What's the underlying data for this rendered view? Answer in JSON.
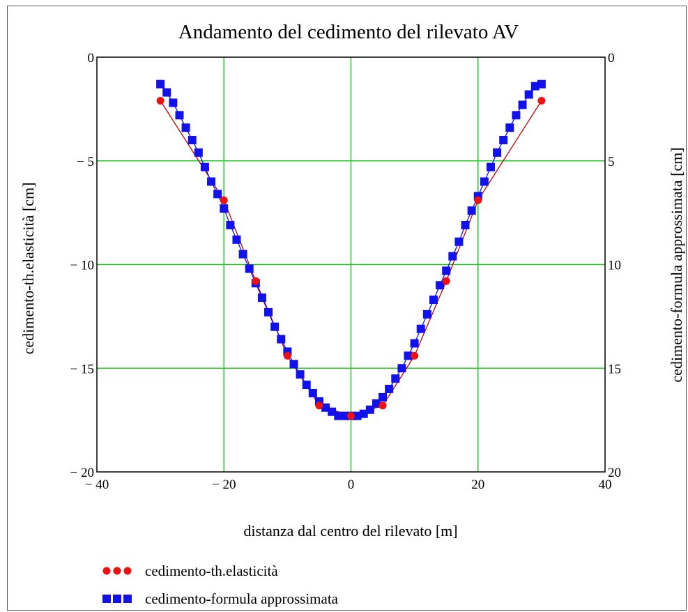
{
  "chart_data": {
    "type": "line",
    "title": "Andamento del cedimento del rilevato AV",
    "xlabel": "distanza dal centro del rilevato [m]",
    "ylabel_left": "cedimento-th.elasticità [cm]",
    "ylabel_right": "cedimento-formula approssimata [cm]",
    "xlim": [
      -40,
      40
    ],
    "ylim_left": [
      -20,
      0
    ],
    "ylim_right": [
      20,
      0
    ],
    "x_ticks": [
      "− 40",
      "− 20",
      "0",
      "20",
      "40"
    ],
    "y_ticks_left": [
      "0",
      "− 5",
      "− 10",
      "− 15",
      "− 20"
    ],
    "y_ticks_right": [
      "0",
      "5",
      "10",
      "15",
      "20"
    ],
    "grid": true,
    "legend_position": "bottom-left",
    "series": [
      {
        "name": "cedimento-th.elasticità",
        "color": "#ee1111",
        "marker": "circle",
        "x": [
          -30,
          -20,
          -15,
          -10,
          -5,
          0,
          5,
          10,
          15,
          20,
          30
        ],
        "y": [
          -2.1,
          -6.9,
          -10.8,
          -14.4,
          -16.8,
          -17.3,
          -16.8,
          -14.4,
          -10.8,
          -6.9,
          -2.1
        ]
      },
      {
        "name": "cedimento-formula approssimata",
        "color": "#1111ee",
        "marker": "square",
        "x": [
          -30,
          -29,
          -28,
          -27,
          -26,
          -25,
          -24,
          -23,
          -22,
          -21,
          -20,
          -19,
          -18,
          -17,
          -16,
          -15,
          -14,
          -13,
          -12,
          -11,
          -10,
          -9,
          -8,
          -7,
          -6,
          -5,
          -4,
          -3,
          -2,
          -1,
          0,
          1,
          2,
          3,
          4,
          5,
          6,
          7,
          8,
          9,
          10,
          11,
          12,
          13,
          14,
          15,
          16,
          17,
          18,
          19,
          20,
          21,
          22,
          23,
          24,
          25,
          26,
          27,
          28,
          29,
          30
        ],
        "y": [
          -1.3,
          -1.7,
          -2.2,
          -2.8,
          -3.4,
          -4.0,
          -4.6,
          -5.3,
          -6.0,
          -6.6,
          -7.3,
          -8.1,
          -8.8,
          -9.5,
          -10.2,
          -10.9,
          -11.6,
          -12.3,
          -13.0,
          -13.6,
          -14.2,
          -14.8,
          -15.3,
          -15.8,
          -16.2,
          -16.6,
          -16.9,
          -17.1,
          -17.3,
          -17.3,
          -17.3,
          -17.3,
          -17.2,
          -17.0,
          -16.7,
          -16.4,
          -16.0,
          -15.5,
          -15.0,
          -14.4,
          -13.8,
          -13.1,
          -12.4,
          -11.7,
          -11.0,
          -10.3,
          -9.6,
          -8.9,
          -8.1,
          -7.4,
          -6.7,
          -6.0,
          -5.3,
          -4.6,
          -4.0,
          -3.4,
          -2.8,
          -2.3,
          -1.8,
          -1.4,
          -1.3
        ]
      }
    ]
  }
}
